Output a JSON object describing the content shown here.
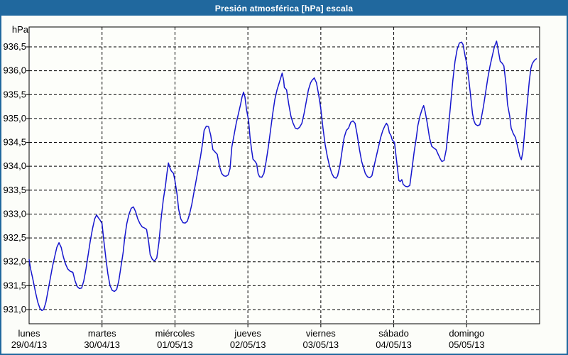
{
  "window": {
    "title": "Presión atmosférica [hPa] escala"
  },
  "colors": {
    "frame_blue": "#20689E",
    "titlebar_blue": "#20689E",
    "background": "#FCFDF9",
    "plot_background": "#FDFEFA",
    "grid_black": "#000000",
    "line_blue": "#1616CE",
    "title_text": "#FFFFFF",
    "axis_text": "#000000"
  },
  "chart_data": {
    "type": "line",
    "title": "Presión atmosférica [hPa] escala",
    "unit_label": "hPa",
    "ylabel": "hPa",
    "xlabel": "",
    "grid": true,
    "grid_style": "dashed",
    "legend": "none",
    "ylim": [
      930.7,
      936.9
    ],
    "y_ticks": [
      936.5,
      936.0,
      935.5,
      935.0,
      934.5,
      934.0,
      933.5,
      933.0,
      932.5,
      932.0,
      931.5,
      931.0
    ],
    "y_tick_decimal_separator": ",",
    "x_categories": [
      {
        "name": "lunes",
        "date": "29/04/13"
      },
      {
        "name": "martes",
        "date": "30/04/13"
      },
      {
        "name": "miércoles",
        "date": "01/05/13"
      },
      {
        "name": "jueves",
        "date": "02/05/13"
      },
      {
        "name": "viernes",
        "date": "03/05/13"
      },
      {
        "name": "sábado",
        "date": "04/05/13"
      },
      {
        "name": "domingo",
        "date": "05/05/13"
      }
    ],
    "series": [
      {
        "name": "Presión atmosférica [hPa]",
        "x_unit": "days from 29/04/13 00:00",
        "points": [
          [
            0,
            932.05
          ],
          [
            0.02,
            931.85
          ],
          [
            0.05,
            931.65
          ],
          [
            0.09,
            931.35
          ],
          [
            0.12,
            931.15
          ],
          [
            0.15,
            931.02
          ],
          [
            0.175,
            930.98
          ],
          [
            0.2,
            931.0
          ],
          [
            0.23,
            931.15
          ],
          [
            0.26,
            931.4
          ],
          [
            0.29,
            931.65
          ],
          [
            0.32,
            931.9
          ],
          [
            0.35,
            932.1
          ],
          [
            0.38,
            932.3
          ],
          [
            0.41,
            932.4
          ],
          [
            0.44,
            932.3
          ],
          [
            0.47,
            932.1
          ],
          [
            0.5,
            931.95
          ],
          [
            0.53,
            931.85
          ],
          [
            0.565,
            931.8
          ],
          [
            0.6,
            931.78
          ],
          [
            0.63,
            931.6
          ],
          [
            0.66,
            931.48
          ],
          [
            0.69,
            931.44
          ],
          [
            0.72,
            931.45
          ],
          [
            0.75,
            931.6
          ],
          [
            0.78,
            931.85
          ],
          [
            0.81,
            932.15
          ],
          [
            0.84,
            932.45
          ],
          [
            0.87,
            932.7
          ],
          [
            0.9,
            932.9
          ],
          [
            0.925,
            932.98
          ],
          [
            0.95,
            932.92
          ],
          [
            0.975,
            932.87
          ],
          [
            1,
            932.8
          ],
          [
            1.02,
            932.5
          ],
          [
            1.05,
            932.1
          ],
          [
            1.08,
            931.75
          ],
          [
            1.11,
            931.5
          ],
          [
            1.14,
            931.4
          ],
          [
            1.17,
            931.38
          ],
          [
            1.2,
            931.42
          ],
          [
            1.23,
            931.6
          ],
          [
            1.26,
            931.9
          ],
          [
            1.29,
            932.2
          ],
          [
            1.31,
            932.5
          ],
          [
            1.34,
            932.8
          ],
          [
            1.37,
            933.0
          ],
          [
            1.4,
            933.12
          ],
          [
            1.43,
            933.15
          ],
          [
            1.46,
            933.05
          ],
          [
            1.49,
            932.9
          ],
          [
            1.52,
            932.8
          ],
          [
            1.55,
            932.73
          ],
          [
            1.58,
            932.71
          ],
          [
            1.61,
            932.68
          ],
          [
            1.64,
            932.4
          ],
          [
            1.66,
            932.15
          ],
          [
            1.69,
            932.05
          ],
          [
            1.72,
            932.02
          ],
          [
            1.75,
            932.08
          ],
          [
            1.78,
            932.4
          ],
          [
            1.81,
            932.9
          ],
          [
            1.84,
            933.3
          ],
          [
            1.87,
            933.6
          ],
          [
            1.89,
            933.85
          ],
          [
            1.91,
            934.07
          ],
          [
            1.93,
            933.97
          ],
          [
            1.95,
            933.9
          ],
          [
            1.98,
            933.85
          ],
          [
            2,
            933.7
          ],
          [
            2.03,
            933.4
          ],
          [
            2.05,
            933.1
          ],
          [
            2.08,
            932.9
          ],
          [
            2.11,
            932.82
          ],
          [
            2.14,
            932.81
          ],
          [
            2.17,
            932.85
          ],
          [
            2.2,
            933.0
          ],
          [
            2.23,
            933.2
          ],
          [
            2.26,
            933.45
          ],
          [
            2.29,
            933.7
          ],
          [
            2.32,
            933.95
          ],
          [
            2.35,
            934.2
          ],
          [
            2.38,
            934.5
          ],
          [
            2.4,
            934.75
          ],
          [
            2.43,
            934.84
          ],
          [
            2.46,
            934.83
          ],
          [
            2.49,
            934.65
          ],
          [
            2.52,
            934.35
          ],
          [
            2.55,
            934.3
          ],
          [
            2.58,
            934.25
          ],
          [
            2.61,
            934.0
          ],
          [
            2.64,
            933.85
          ],
          [
            2.67,
            933.8
          ],
          [
            2.7,
            933.79
          ],
          [
            2.73,
            933.82
          ],
          [
            2.755,
            933.95
          ],
          [
            2.78,
            934.4
          ],
          [
            2.81,
            934.65
          ],
          [
            2.84,
            934.9
          ],
          [
            2.87,
            935.1
          ],
          [
            2.9,
            935.3
          ],
          [
            2.92,
            935.45
          ],
          [
            2.94,
            935.55
          ],
          [
            2.96,
            935.45
          ],
          [
            2.98,
            935.2
          ],
          [
            3.01,
            934.95
          ],
          [
            3.03,
            934.6
          ],
          [
            3.05,
            934.35
          ],
          [
            3.07,
            934.15
          ],
          [
            3.1,
            934.1
          ],
          [
            3.12,
            934.05
          ],
          [
            3.14,
            933.85
          ],
          [
            3.16,
            933.78
          ],
          [
            3.19,
            933.77
          ],
          [
            3.22,
            933.85
          ],
          [
            3.25,
            934.1
          ],
          [
            3.28,
            934.4
          ],
          [
            3.31,
            934.75
          ],
          [
            3.34,
            935.1
          ],
          [
            3.37,
            935.4
          ],
          [
            3.4,
            935.6
          ],
          [
            3.43,
            935.75
          ],
          [
            3.45,
            935.85
          ],
          [
            3.47,
            935.95
          ],
          [
            3.49,
            935.8
          ],
          [
            3.5,
            935.65
          ],
          [
            3.53,
            935.6
          ],
          [
            3.56,
            935.3
          ],
          [
            3.59,
            935.05
          ],
          [
            3.62,
            934.9
          ],
          [
            3.65,
            934.8
          ],
          [
            3.68,
            934.78
          ],
          [
            3.71,
            934.82
          ],
          [
            3.74,
            934.9
          ],
          [
            3.77,
            935.1
          ],
          [
            3.8,
            935.35
          ],
          [
            3.83,
            935.6
          ],
          [
            3.86,
            935.75
          ],
          [
            3.88,
            935.8
          ],
          [
            3.91,
            935.85
          ],
          [
            3.94,
            935.75
          ],
          [
            3.97,
            935.5
          ],
          [
            4,
            935.2
          ],
          [
            4.03,
            934.8
          ],
          [
            4.06,
            934.45
          ],
          [
            4.09,
            934.2
          ],
          [
            4.12,
            934.0
          ],
          [
            4.15,
            933.85
          ],
          [
            4.18,
            933.77
          ],
          [
            4.21,
            933.75
          ],
          [
            4.23,
            933.8
          ],
          [
            4.26,
            934.0
          ],
          [
            4.29,
            934.3
          ],
          [
            4.32,
            934.6
          ],
          [
            4.35,
            934.75
          ],
          [
            4.38,
            934.8
          ],
          [
            4.41,
            934.92
          ],
          [
            4.44,
            934.95
          ],
          [
            4.47,
            934.9
          ],
          [
            4.5,
            934.65
          ],
          [
            4.53,
            934.35
          ],
          [
            4.56,
            934.1
          ],
          [
            4.59,
            933.95
          ],
          [
            4.61,
            933.85
          ],
          [
            4.64,
            933.78
          ],
          [
            4.67,
            933.76
          ],
          [
            4.7,
            933.8
          ],
          [
            4.73,
            934.0
          ],
          [
            4.76,
            934.2
          ],
          [
            4.79,
            934.4
          ],
          [
            4.82,
            934.6
          ],
          [
            4.85,
            934.75
          ],
          [
            4.88,
            934.85
          ],
          [
            4.9,
            934.9
          ],
          [
            4.92,
            934.85
          ],
          [
            4.94,
            934.7
          ],
          [
            4.96,
            934.65
          ],
          [
            4.98,
            934.55
          ],
          [
            5.01,
            934.5
          ],
          [
            5.04,
            934.1
          ],
          [
            5.07,
            933.7
          ],
          [
            5.09,
            933.68
          ],
          [
            5.11,
            933.72
          ],
          [
            5.13,
            933.62
          ],
          [
            5.16,
            933.58
          ],
          [
            5.19,
            933.57
          ],
          [
            5.22,
            933.6
          ],
          [
            5.25,
            933.95
          ],
          [
            5.28,
            934.3
          ],
          [
            5.31,
            934.6
          ],
          [
            5.33,
            934.85
          ],
          [
            5.36,
            935.05
          ],
          [
            5.39,
            935.2
          ],
          [
            5.41,
            935.27
          ],
          [
            5.43,
            935.15
          ],
          [
            5.46,
            934.9
          ],
          [
            5.49,
            934.6
          ],
          [
            5.52,
            934.42
          ],
          [
            5.55,
            934.38
          ],
          [
            5.58,
            934.35
          ],
          [
            5.61,
            934.25
          ],
          [
            5.64,
            934.15
          ],
          [
            5.66,
            934.1
          ],
          [
            5.69,
            934.12
          ],
          [
            5.72,
            934.35
          ],
          [
            5.75,
            934.8
          ],
          [
            5.78,
            935.3
          ],
          [
            5.81,
            935.8
          ],
          [
            5.84,
            936.2
          ],
          [
            5.87,
            936.45
          ],
          [
            5.9,
            936.58
          ],
          [
            5.93,
            936.6
          ],
          [
            5.95,
            936.55
          ],
          [
            5.98,
            936.3
          ],
          [
            6,
            936.15
          ],
          [
            6.03,
            935.8
          ],
          [
            6.06,
            935.4
          ],
          [
            6.08,
            935.1
          ],
          [
            6.1,
            934.95
          ],
          [
            6.12,
            934.88
          ],
          [
            6.15,
            934.85
          ],
          [
            6.18,
            934.87
          ],
          [
            6.2,
            935.0
          ],
          [
            6.23,
            935.25
          ],
          [
            6.26,
            935.55
          ],
          [
            6.29,
            935.85
          ],
          [
            6.32,
            936.1
          ],
          [
            6.35,
            936.3
          ],
          [
            6.38,
            936.5
          ],
          [
            6.41,
            936.62
          ],
          [
            6.43,
            936.45
          ],
          [
            6.46,
            936.2
          ],
          [
            6.49,
            936.15
          ],
          [
            6.51,
            936.1
          ],
          [
            6.54,
            935.7
          ],
          [
            6.56,
            935.3
          ],
          [
            6.59,
            935.05
          ],
          [
            6.61,
            934.8
          ],
          [
            6.64,
            934.68
          ],
          [
            6.67,
            934.6
          ],
          [
            6.7,
            934.4
          ],
          [
            6.73,
            934.2
          ],
          [
            6.75,
            934.14
          ],
          [
            6.77,
            934.3
          ],
          [
            6.8,
            934.8
          ],
          [
            6.83,
            935.3
          ],
          [
            6.86,
            935.8
          ],
          [
            6.88,
            936.05
          ],
          [
            6.9,
            936.15
          ],
          [
            6.93,
            936.22
          ],
          [
            6.955,
            936.25
          ]
        ]
      }
    ]
  }
}
